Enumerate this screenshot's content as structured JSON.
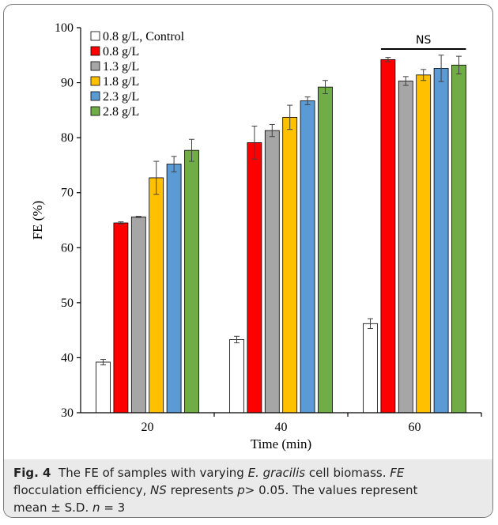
{
  "colors": {
    "control": "#ffffff",
    "s08": "#ff0000",
    "s13": "#a6a6a6",
    "s18": "#ffc000",
    "s23": "#5b9bd5",
    "s28": "#70ad47",
    "caption_bg": "#eaeaea"
  },
  "caption": {
    "fig_label": "Fig. 4",
    "line1_pre": "The FE of samples with varying",
    "line1_species": "E. gracilis",
    "line1_post": "cell biomass.",
    "abbr_fe": "FE",
    "line2_a": "flocculation efficiency,",
    "abbr_ns": "NS",
    "line2_b": "represents",
    "p_symbol": "p",
    "line2_c": "> 0.05. The values represent",
    "line3_a": "mean ± S.D.",
    "n_symbol": "n",
    "line3_b": "= 3"
  },
  "chart_data": {
    "type": "bar",
    "xlabel": "Time (min)",
    "ylabel": "FE (%)",
    "ylim": [
      30,
      100
    ],
    "yticks": [
      30,
      40,
      50,
      60,
      70,
      80,
      90,
      100
    ],
    "categories": [
      "20",
      "40",
      "60"
    ],
    "legend_position": "top-left",
    "series": [
      {
        "name": "0.8 g/L, Control",
        "color": "#ffffff",
        "values": [
          39.2,
          43.3,
          46.2
        ],
        "errors": [
          0.5,
          0.6,
          0.9
        ]
      },
      {
        "name": "0.8 g/L",
        "color": "#ff0000",
        "values": [
          64.5,
          79.1,
          94.2
        ],
        "errors": [
          0.2,
          3.0,
          0.4
        ]
      },
      {
        "name": "1.3 g/L",
        "color": "#a6a6a6",
        "values": [
          65.6,
          81.3,
          90.3
        ],
        "errors": [
          0.1,
          1.1,
          0.8
        ]
      },
      {
        "name": "1.8 g/L",
        "color": "#ffc000",
        "values": [
          72.7,
          83.7,
          91.4
        ],
        "errors": [
          3.0,
          2.2,
          1.0
        ]
      },
      {
        "name": "2.3 g/L",
        "color": "#5b9bd5",
        "values": [
          75.2,
          86.7,
          92.6
        ],
        "errors": [
          1.4,
          0.7,
          2.4
        ]
      },
      {
        "name": "2.8 g/L",
        "color": "#70ad47",
        "values": [
          77.7,
          89.2,
          93.2
        ],
        "errors": [
          2.0,
          1.2,
          1.6
        ]
      }
    ],
    "annotation": "NS"
  }
}
